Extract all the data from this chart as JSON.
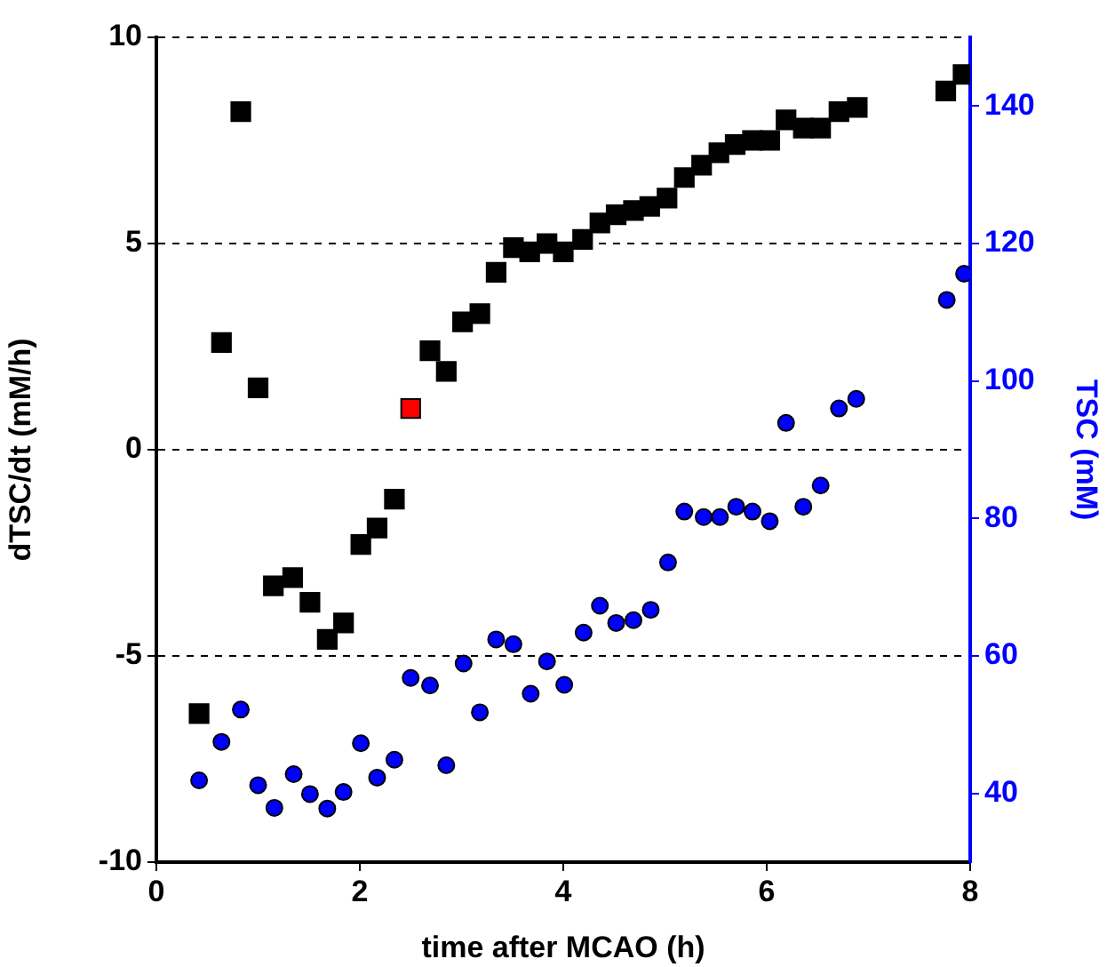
{
  "chart_data": {
    "type": "scatter",
    "xlabel": "time after MCAO (h)",
    "ylabel": "dTSC/dt (mM/h)",
    "y2label": "TSC (mM)",
    "xlim": [
      0,
      8
    ],
    "xticks": [
      0,
      2,
      4,
      6,
      8
    ],
    "ylim": [
      -10,
      10
    ],
    "yticks": [
      -10,
      -5,
      0,
      5,
      10
    ],
    "y2lim": [
      30,
      150
    ],
    "y2ticks": [
      40,
      60,
      80,
      100,
      120,
      140
    ],
    "grid": "y",
    "series": [
      {
        "marker": "square",
        "color": "#000000",
        "x": [
          0.42,
          0.64,
          0.83,
          1.0,
          1.15,
          1.34,
          1.51,
          1.68,
          1.84,
          2.01,
          2.17,
          2.34,
          2.5,
          2.69,
          2.85,
          3.01,
          3.18,
          3.34,
          3.51,
          3.67,
          3.84,
          4.0,
          4.19,
          4.36,
          4.52,
          4.69,
          4.85,
          5.02,
          5.19,
          5.36,
          5.53,
          5.69,
          5.86,
          6.03,
          6.19,
          6.36,
          6.53,
          6.71,
          6.89,
          7.76,
          7.93
        ],
        "values": [
          -6.4,
          2.6,
          8.2,
          1.5,
          -3.3,
          -3.1,
          -3.7,
          -4.6,
          -4.2,
          -2.3,
          -1.9,
          -1.2,
          1.0,
          2.4,
          1.9,
          3.1,
          3.3,
          4.3,
          4.9,
          4.8,
          5.0,
          4.8,
          5.1,
          5.5,
          5.7,
          5.8,
          5.9,
          6.1,
          6.6,
          6.9,
          7.2,
          7.4,
          7.5,
          7.5,
          8.0,
          7.8,
          7.8,
          8.2,
          8.3,
          8.7,
          9.1
        ],
        "colors": [
          "#000000",
          "#000000",
          "#000000",
          "#000000",
          "#000000",
          "#000000",
          "#000000",
          "#000000",
          "#000000",
          "#000000",
          "#000000",
          "#000000",
          "#ff0000",
          "#000000",
          "#000000",
          "#000000",
          "#000000",
          "#000000",
          "#000000",
          "#000000",
          "#000000",
          "#000000",
          "#000000",
          "#000000",
          "#000000",
          "#000000",
          "#000000",
          "#000000",
          "#000000",
          "#000000",
          "#000000",
          "#000000",
          "#000000",
          "#000000",
          "#000000",
          "#000000",
          "#000000",
          "#000000",
          "#000000",
          "#000000",
          "#000000"
        ]
      },
      {
        "marker": "circle",
        "color": "#0000ff",
        "axis": "y2",
        "x": [
          0.42,
          0.64,
          0.83,
          1.0,
          1.16,
          1.35,
          1.51,
          1.68,
          1.84,
          2.01,
          2.17,
          2.34,
          2.5,
          2.69,
          2.85,
          3.02,
          3.18,
          3.34,
          3.51,
          3.68,
          3.84,
          4.01,
          4.2,
          4.36,
          4.52,
          4.69,
          4.86,
          5.03,
          5.19,
          5.38,
          5.54,
          5.7,
          5.86,
          6.03,
          6.19,
          6.36,
          6.53,
          6.71,
          6.88,
          7.77,
          7.94
        ],
        "values": [
          41.9,
          47.5,
          52.2,
          41.2,
          37.9,
          42.8,
          39.9,
          37.8,
          40.2,
          47.3,
          42.3,
          44.9,
          56.8,
          55.7,
          44.1,
          58.9,
          51.8,
          62.4,
          61.7,
          54.5,
          59.2,
          55.8,
          63.4,
          67.3,
          64.8,
          65.2,
          66.7,
          73.6,
          81.0,
          80.2,
          80.2,
          81.7,
          81.0,
          79.6,
          93.9,
          81.7,
          84.8,
          96.0,
          97.4,
          111.8,
          115.6
        ]
      }
    ]
  }
}
